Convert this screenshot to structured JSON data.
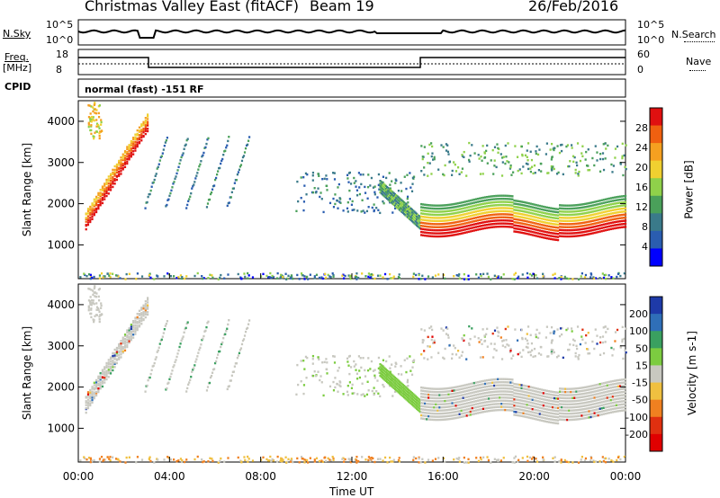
{
  "header": {
    "title": "Christmas Valley East (fitACF)",
    "beam": "Beam 19",
    "date": "26/Feb/2016"
  },
  "noise_panel": {
    "left_label": "N.Sky",
    "right_label": "N.Search",
    "left_ticks": [
      "10^5",
      "10^0"
    ],
    "right_ticks": [
      "10^5",
      "10^0"
    ]
  },
  "freq_panel": {
    "left_label_line1": "Freq.",
    "left_label_line2": "[MHz]",
    "left_ticks": [
      "18",
      "8"
    ],
    "right_label": "Nave",
    "right_ticks": [
      "60",
      "0"
    ]
  },
  "cpid": {
    "label": "CPID",
    "value": "normal (fast) -151 RF"
  },
  "x_axis": {
    "label": "Time UT",
    "ticks": [
      "00:00",
      "04:00",
      "08:00",
      "12:00",
      "16:00",
      "20:00",
      "00:00"
    ],
    "range_hours": [
      0,
      24
    ]
  },
  "chart_data": [
    {
      "type": "heatmap",
      "panel": "power",
      "ylabel": "Slant Range [km]",
      "yticks": [
        "1000",
        "2000",
        "3000",
        "4000"
      ],
      "ylim": [
        180,
        4500
      ],
      "colorbar": {
        "label": "Power [dB]",
        "ticks": [
          "4",
          "8",
          "12",
          "16",
          "20",
          "24",
          "28"
        ],
        "range": [
          0,
          32
        ],
        "colors": [
          "#0000ff",
          "#2a5db0",
          "#3a7a8a",
          "#4aa05a",
          "#8fd14a",
          "#f0d030",
          "#f5a020",
          "#f06010",
          "#e01010"
        ]
      },
      "features": [
        {
          "t_start": 0.3,
          "t_end": 3.0,
          "range_start": 1400,
          "range_end": 3800,
          "power_db": 28,
          "note": "rising red band"
        },
        {
          "t_start": 14.9,
          "t_end": 24.0,
          "range_center": 1550,
          "power_db": 28,
          "note": "persistent red band"
        },
        {
          "t_start": 15.0,
          "t_end": 24.0,
          "range_center": 3000,
          "power_db": 12,
          "note": "far-range scatter"
        }
      ]
    },
    {
      "type": "heatmap",
      "panel": "velocity",
      "ylabel": "Slant Range [km]",
      "yticks": [
        "1000",
        "2000",
        "3000",
        "4000"
      ],
      "ylim": [
        180,
        4500
      ],
      "colorbar": {
        "label": "Velocity [m s-1]",
        "ticks": [
          "200",
          "100",
          "50",
          "15",
          "-15",
          "-50",
          "-100",
          "-200"
        ],
        "colors": [
          "#1e3aa8",
          "#2f6fb8",
          "#3aa060",
          "#7ccc40",
          "#c8c8c0",
          "#f0c040",
          "#f08020",
          "#e03010",
          "#e00000"
        ]
      }
    }
  ]
}
